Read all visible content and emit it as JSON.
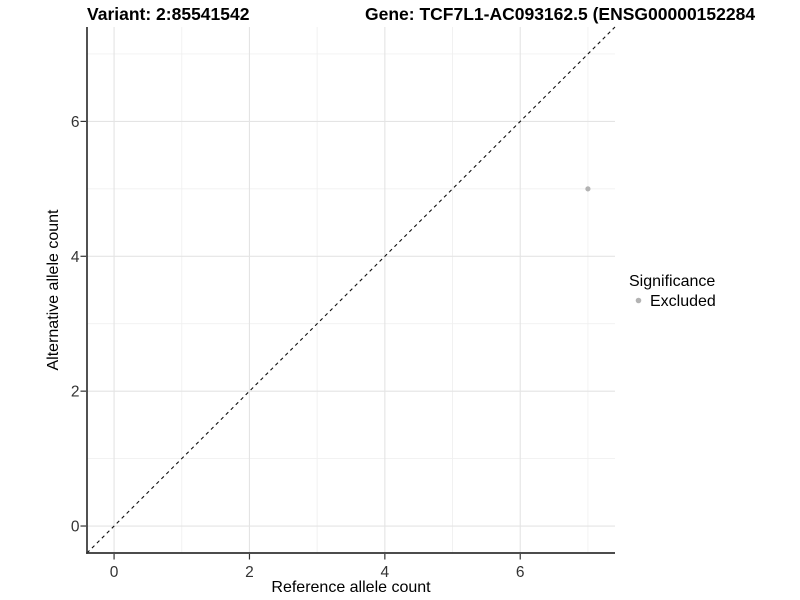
{
  "chart_data": {
    "type": "scatter",
    "title_left": "Variant: 2:85541542",
    "title_right": "Gene: TCF7L1-AC093162.5 (ENSG00000152284",
    "xlabel": "Reference allele count",
    "ylabel": "Alternative allele count",
    "xlim": [
      -0.4,
      7.4
    ],
    "ylim": [
      -0.4,
      7.4
    ],
    "xticks": [
      0,
      2,
      4,
      6
    ],
    "yticks": [
      0,
      2,
      4,
      6
    ],
    "x_minor_gridlines": [
      1,
      3,
      5,
      7
    ],
    "y_minor_gridlines": [
      1,
      3,
      5,
      7
    ],
    "grid": "major and minor, light gray on white panel",
    "reference_line": {
      "kind": "identity y=x",
      "linetype": "dashed",
      "color": "#111111"
    },
    "series": [
      {
        "name": "Excluded",
        "color": "#b3b3b3",
        "points": [
          {
            "x": 7,
            "y": 5
          }
        ]
      }
    ],
    "legend": {
      "position": "right",
      "title": "Significance",
      "entries": [
        {
          "label": "Excluded",
          "marker": "circle",
          "color": "#b3b3b3"
        }
      ]
    }
  },
  "style": {
    "axis_color": "#333333",
    "tick_label_color": "#333333",
    "major_gridline_color": "#e4e4e4",
    "minor_gridline_color": "#f0f0f0",
    "point_color": "#b3b3b3",
    "background_color": "#ffffff"
  }
}
